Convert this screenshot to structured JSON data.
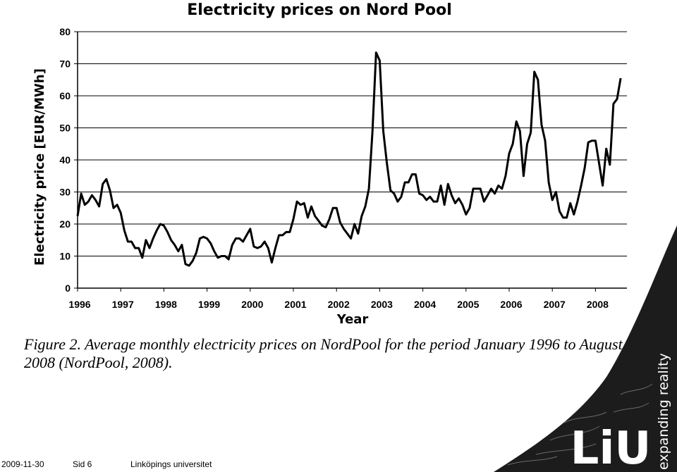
{
  "chart_data": {
    "type": "line",
    "title": "Electricity prices on Nord Pool",
    "xlabel": "Year",
    "ylabel": "Electricity price [EUR/MWh]",
    "ylim": [
      0,
      80
    ],
    "yticks": [
      0,
      10,
      20,
      30,
      40,
      50,
      60,
      70,
      80
    ],
    "xlim": [
      1996,
      2008.67
    ],
    "xticks": [
      "1996",
      "1997",
      "1998",
      "1999",
      "2000",
      "2001",
      "2002",
      "2003",
      "2004",
      "2005",
      "2006",
      "2007",
      "2008"
    ],
    "grid": "horizontal",
    "series": [
      {
        "color": "#000000",
        "x_start": 1996,
        "x_step_months": 1,
        "values": [
          22.5,
          29.5,
          26,
          27,
          29,
          27.5,
          25.5,
          32.5,
          34,
          30.5,
          25,
          26,
          23.5,
          18,
          14.5,
          14.5,
          12.5,
          12.5,
          9.5,
          15,
          12.5,
          15.5,
          18,
          20,
          19.5,
          17.5,
          15,
          13.5,
          11.5,
          13.5,
          7.5,
          7,
          8.5,
          11,
          15.5,
          16,
          15.5,
          14,
          11.5,
          9.5,
          10,
          10,
          9,
          13.5,
          15.5,
          15.5,
          14.5,
          16.5,
          18.5,
          13,
          12.5,
          13,
          14.5,
          12.5,
          8,
          12.5,
          16.5,
          16.5,
          17.5,
          17.5,
          21.5,
          27,
          26,
          26.5,
          22,
          25.5,
          22.5,
          21,
          19.5,
          19,
          21.5,
          25,
          25,
          20.5,
          18.5,
          17,
          15.5,
          20,
          17,
          22.5,
          25.5,
          31,
          49,
          73.5,
          71,
          49,
          39,
          30.5,
          29.5,
          27,
          28.5,
          33,
          33,
          35.5,
          35.5,
          29.5,
          29,
          27.5,
          28.5,
          27,
          27,
          32,
          26,
          32.5,
          29,
          26.5,
          28,
          26,
          23,
          25,
          31,
          31,
          31,
          27,
          29,
          31,
          29.5,
          32,
          31,
          35,
          42,
          45,
          52,
          49,
          35,
          45,
          48.5,
          67.5,
          65,
          51,
          46,
          33,
          27.5,
          30,
          24,
          22,
          22,
          26.5,
          23,
          27,
          32,
          37.5,
          45.5,
          46,
          46,
          39,
          32,
          43.5,
          38.5,
          57.5,
          59,
          65.5
        ]
      }
    ]
  },
  "caption": "Figure 2. Average monthly electricity prices on NordPool for the period January 1996 to August 2008 (NordPool, 2008).",
  "footer": {
    "date": "2009-11-30",
    "page": "Sid 6",
    "organization": "Linköpings universitet"
  },
  "logo": {
    "text": "LiU",
    "tagline": "expanding reality"
  }
}
